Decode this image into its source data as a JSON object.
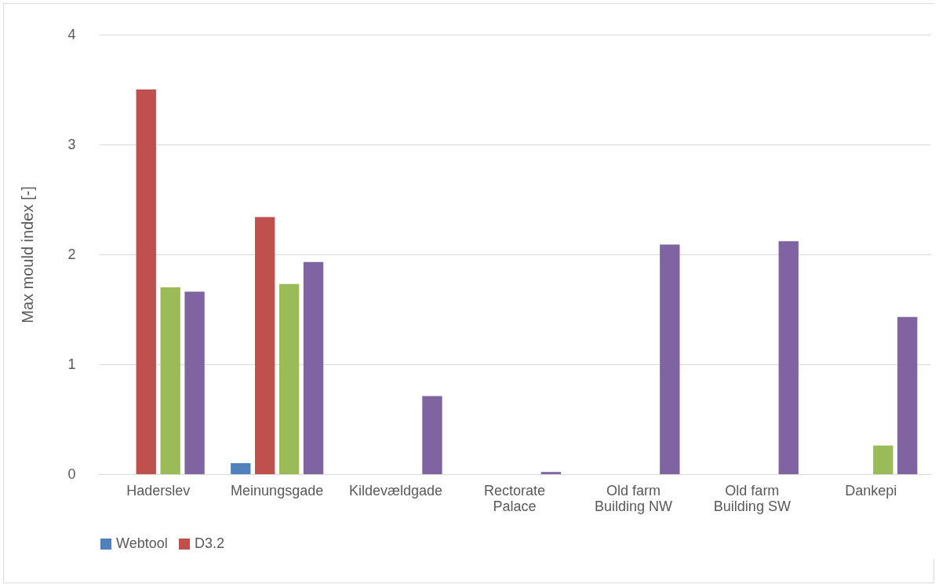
{
  "chart_data": {
    "type": "bar",
    "ylabel": "Max mould index [-]",
    "categories": [
      "Haderslev",
      "Meinungsgade",
      "Kildevældgade",
      "Rectorate Palace",
      "Old farm Building NW",
      "Old farm Building SW",
      "Dankepi"
    ],
    "series": [
      {
        "name": "Webtool",
        "color": "#4f81bd",
        "values": [
          null,
          0.1,
          null,
          null,
          null,
          null,
          null
        ]
      },
      {
        "name": "D3.2",
        "color": "#c0504d",
        "values": [
          3.5,
          2.34,
          null,
          null,
          null,
          null,
          null
        ]
      },
      {
        "color": "#9bbb59",
        "values": [
          1.7,
          1.73,
          null,
          null,
          null,
          null,
          0.26
        ]
      },
      {
        "color": "#8064a2",
        "values": [
          1.66,
          1.93,
          0.71,
          0.02,
          2.09,
          2.12,
          1.43
        ]
      }
    ],
    "ylim": [
      0,
      4
    ],
    "yticks": [
      0,
      1,
      2,
      3,
      4
    ],
    "grid": "y",
    "legend": "bottom"
  }
}
